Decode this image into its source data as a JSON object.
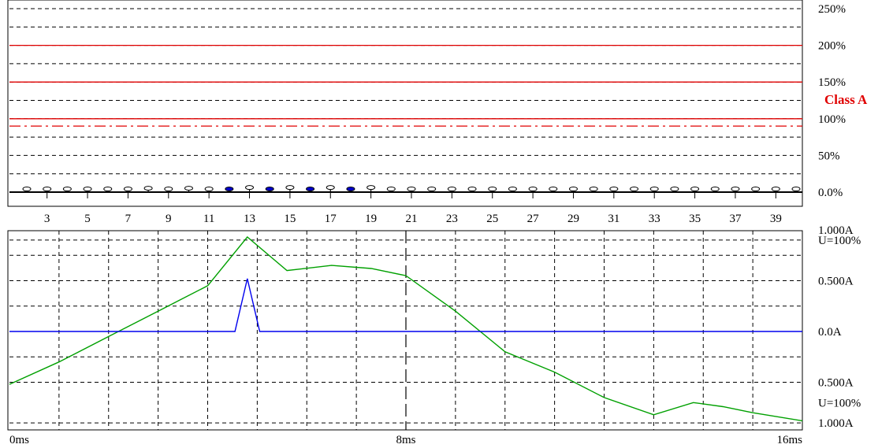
{
  "colors": {
    "limit": "#e00000",
    "current": "#0000ee",
    "voltage": "#00a000",
    "grid": "#000000",
    "marker_fill": "#ffffff",
    "marker_highlight": "#0000cc"
  },
  "chart_data": [
    {
      "type": "bar",
      "title": "",
      "ylim": [
        0,
        250
      ],
      "y_ticks": [
        "250%",
        "200%",
        "150%",
        "100%",
        "50%",
        "0.0%"
      ],
      "x_tick_labels": [
        "3",
        "5",
        "7",
        "9",
        "11",
        "13",
        "15",
        "17",
        "19",
        "21",
        "23",
        "25",
        "27",
        "29",
        "31",
        "33",
        "35",
        "37",
        "39"
      ],
      "class_label": "Class A",
      "limit_lines": [
        {
          "style": "solid",
          "value": 200
        },
        {
          "style": "solid",
          "value": 150
        },
        {
          "style": "solid",
          "value": 100
        },
        {
          "style": "dash-dot",
          "value": 90
        }
      ],
      "harmonics": [
        2,
        3,
        4,
        5,
        6,
        7,
        8,
        9,
        10,
        11,
        12,
        13,
        14,
        15,
        16,
        17,
        18,
        19,
        20,
        21,
        22,
        23,
        24,
        25,
        26,
        27,
        28,
        29,
        30,
        31,
        32,
        33,
        34,
        35,
        36,
        37,
        38,
        39,
        40
      ],
      "values": [
        0,
        0,
        0,
        0,
        0,
        0,
        1,
        0,
        1,
        0,
        0,
        2,
        0,
        2,
        0,
        2,
        0,
        2,
        0,
        0,
        0,
        0,
        0,
        0,
        0,
        0,
        0,
        0,
        0,
        0,
        0,
        0,
        0,
        0,
        0,
        0,
        0,
        0,
        0
      ],
      "highlighted": [
        12,
        14,
        16,
        18
      ]
    },
    {
      "type": "line",
      "title": "",
      "x_ticks": [
        "0ms",
        "8ms",
        "16ms"
      ],
      "xlim": [
        0,
        16
      ],
      "ylim": [
        -1.0,
        1.0
      ],
      "y_labels": [
        {
          "value": 1.0,
          "text": "1.000A"
        },
        {
          "value": 0.9,
          "text": "U=100%"
        },
        {
          "value": 0.5,
          "text": "0.500A"
        },
        {
          "value": 0.0,
          "text": "0.0A"
        },
        {
          "value": -0.5,
          "text": "0.500A"
        },
        {
          "value": -0.7,
          "text": "U=100%"
        },
        {
          "value": -0.9,
          "text": "1.000A"
        }
      ],
      "cursor_x": 8,
      "series": [
        {
          "color_key": "voltage",
          "x": [
            0,
            1.0,
            2.0,
            3.0,
            4.0,
            4.8,
            5.6,
            6.5,
            7.3,
            8.0,
            9.0,
            10.0,
            11.0,
            12.0,
            13.0,
            13.8,
            14.4,
            15.0,
            16.0
          ],
          "y": [
            -0.52,
            -0.3,
            -0.05,
            0.2,
            0.45,
            0.93,
            0.6,
            0.65,
            0.62,
            0.55,
            0.2,
            -0.2,
            -0.4,
            -0.65,
            -0.82,
            -0.7,
            -0.74,
            -0.8,
            -0.88
          ]
        },
        {
          "color_key": "current",
          "x": [
            0,
            4.55,
            4.8,
            5.05,
            16.0
          ],
          "y": [
            0,
            0,
            0.52,
            0,
            0
          ]
        }
      ]
    }
  ]
}
